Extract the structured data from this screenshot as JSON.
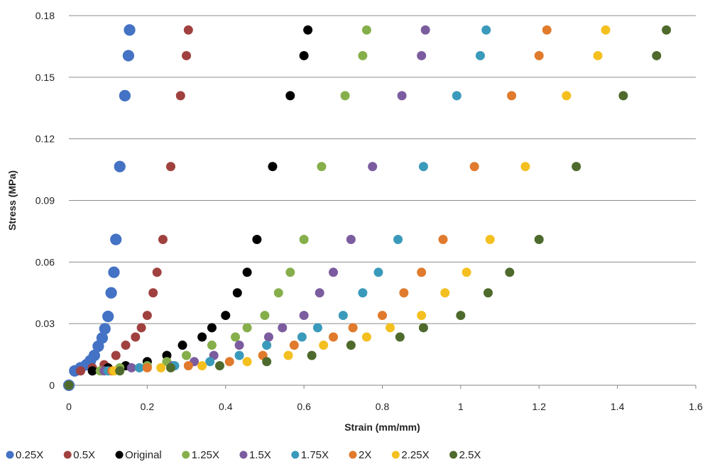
{
  "chart_data": {
    "type": "scatter",
    "xlabel": "Strain (mm/mm)",
    "ylabel": "Stress (MPa)",
    "xlim": [
      0,
      1.6
    ],
    "ylim": [
      0,
      0.18
    ],
    "x_ticks": [
      0,
      0.2,
      0.4,
      0.6,
      0.8,
      1,
      1.2,
      1.4,
      1.6
    ],
    "x_tick_labels": [
      "0",
      "0.2",
      "0.4",
      "0.6",
      "0.8",
      "1",
      "1.2",
      "1.4",
      "1.6"
    ],
    "y_ticks": [
      0,
      0.03,
      0.06,
      0.09,
      0.12,
      0.15,
      0.18
    ],
    "y_tick_labels": [
      "0",
      "0.03",
      "0.06",
      "0.09",
      "0.12",
      "0.15",
      "0.18"
    ],
    "grid": "horizontal",
    "legend_position": "bottom",
    "series": [
      {
        "name": "0.25X",
        "color": "#4472C4",
        "marker_scale": 1.25,
        "points": [
          [
            0,
            0
          ],
          [
            0.015,
            0.007
          ],
          [
            0.03,
            0.0085
          ],
          [
            0.045,
            0.01
          ],
          [
            0.055,
            0.012
          ],
          [
            0.065,
            0.0145
          ],
          [
            0.075,
            0.019
          ],
          [
            0.085,
            0.023
          ],
          [
            0.092,
            0.0275
          ],
          [
            0.1,
            0.0335
          ],
          [
            0.108,
            0.045
          ],
          [
            0.115,
            0.055
          ],
          [
            0.12,
            0.071
          ],
          [
            0.13,
            0.1065
          ],
          [
            0.143,
            0.141
          ],
          [
            0.152,
            0.1605
          ],
          [
            0.155,
            0.173
          ]
        ]
      },
      {
        "name": "0.5X",
        "color": "#A0413F",
        "points": [
          [
            0,
            0
          ],
          [
            0.03,
            0.007
          ],
          [
            0.06,
            0.0085
          ],
          [
            0.09,
            0.01
          ],
          [
            0.12,
            0.0145
          ],
          [
            0.145,
            0.0195
          ],
          [
            0.17,
            0.0235
          ],
          [
            0.185,
            0.028
          ],
          [
            0.2,
            0.034
          ],
          [
            0.215,
            0.045
          ],
          [
            0.225,
            0.055
          ],
          [
            0.24,
            0.071
          ],
          [
            0.26,
            0.1065
          ],
          [
            0.285,
            0.141
          ],
          [
            0.3,
            0.1605
          ],
          [
            0.305,
            0.173
          ]
        ]
      },
      {
        "name": "Original",
        "color": "#000000",
        "points": [
          [
            0,
            0
          ],
          [
            0.06,
            0.007
          ],
          [
            0.1,
            0.0085
          ],
          [
            0.145,
            0.0095
          ],
          [
            0.2,
            0.0115
          ],
          [
            0.25,
            0.0145
          ],
          [
            0.29,
            0.0195
          ],
          [
            0.34,
            0.0235
          ],
          [
            0.365,
            0.028
          ],
          [
            0.4,
            0.034
          ],
          [
            0.43,
            0.045
          ],
          [
            0.455,
            0.055
          ],
          [
            0.48,
            0.071
          ],
          [
            0.52,
            0.1065
          ],
          [
            0.565,
            0.141
          ],
          [
            0.6,
            0.1605
          ],
          [
            0.61,
            0.173
          ]
        ]
      },
      {
        "name": "1.25X",
        "color": "#86AF4B",
        "points": [
          [
            0,
            0
          ],
          [
            0.08,
            0.007
          ],
          [
            0.13,
            0.0085
          ],
          [
            0.2,
            0.0095
          ],
          [
            0.25,
            0.0115
          ],
          [
            0.3,
            0.0145
          ],
          [
            0.365,
            0.0195
          ],
          [
            0.425,
            0.0235
          ],
          [
            0.455,
            0.028
          ],
          [
            0.5,
            0.034
          ],
          [
            0.535,
            0.045
          ],
          [
            0.565,
            0.055
          ],
          [
            0.6,
            0.071
          ],
          [
            0.645,
            0.1065
          ],
          [
            0.705,
            0.141
          ],
          [
            0.75,
            0.1605
          ],
          [
            0.76,
            0.173
          ]
        ]
      },
      {
        "name": "1.5X",
        "color": "#7B5C9F",
        "points": [
          [
            0,
            0
          ],
          [
            0.09,
            0.007
          ],
          [
            0.16,
            0.0085
          ],
          [
            0.265,
            0.0095
          ],
          [
            0.32,
            0.0115
          ],
          [
            0.37,
            0.0145
          ],
          [
            0.435,
            0.0195
          ],
          [
            0.51,
            0.0235
          ],
          [
            0.545,
            0.028
          ],
          [
            0.6,
            0.034
          ],
          [
            0.64,
            0.045
          ],
          [
            0.675,
            0.055
          ],
          [
            0.72,
            0.071
          ],
          [
            0.775,
            0.1065
          ],
          [
            0.85,
            0.141
          ],
          [
            0.9,
            0.1605
          ],
          [
            0.91,
            0.173
          ]
        ]
      },
      {
        "name": "1.75X",
        "color": "#3A9ABB",
        "points": [
          [
            0,
            0
          ],
          [
            0.1,
            0.007
          ],
          [
            0.18,
            0.0085
          ],
          [
            0.27,
            0.0095
          ],
          [
            0.36,
            0.0115
          ],
          [
            0.435,
            0.0145
          ],
          [
            0.505,
            0.0195
          ],
          [
            0.595,
            0.0235
          ],
          [
            0.635,
            0.028
          ],
          [
            0.7,
            0.034
          ],
          [
            0.75,
            0.045
          ],
          [
            0.79,
            0.055
          ],
          [
            0.84,
            0.071
          ],
          [
            0.905,
            0.1065
          ],
          [
            0.99,
            0.141
          ],
          [
            1.05,
            0.1605
          ],
          [
            1.065,
            0.173
          ]
        ]
      },
      {
        "name": "2X",
        "color": "#E07A2C",
        "points": [
          [
            0,
            0
          ],
          [
            0.11,
            0.007
          ],
          [
            0.2,
            0.0085
          ],
          [
            0.305,
            0.0095
          ],
          [
            0.41,
            0.0115
          ],
          [
            0.495,
            0.0145
          ],
          [
            0.575,
            0.0195
          ],
          [
            0.675,
            0.0235
          ],
          [
            0.725,
            0.028
          ],
          [
            0.8,
            0.034
          ],
          [
            0.855,
            0.045
          ],
          [
            0.9,
            0.055
          ],
          [
            0.955,
            0.071
          ],
          [
            1.035,
            0.1065
          ],
          [
            1.13,
            0.141
          ],
          [
            1.2,
            0.1605
          ],
          [
            1.22,
            0.173
          ]
        ]
      },
      {
        "name": "2.25X",
        "color": "#F4C020",
        "points": [
          [
            0,
            0
          ],
          [
            0.115,
            0.007
          ],
          [
            0.235,
            0.0085
          ],
          [
            0.34,
            0.0095
          ],
          [
            0.455,
            0.0115
          ],
          [
            0.56,
            0.0145
          ],
          [
            0.65,
            0.0195
          ],
          [
            0.76,
            0.0235
          ],
          [
            0.82,
            0.028
          ],
          [
            0.9,
            0.034
          ],
          [
            0.96,
            0.045
          ],
          [
            1.015,
            0.055
          ],
          [
            1.075,
            0.071
          ],
          [
            1.165,
            0.1065
          ],
          [
            1.27,
            0.141
          ],
          [
            1.35,
            0.1605
          ],
          [
            1.37,
            0.173
          ]
        ]
      },
      {
        "name": "2.5X",
        "color": "#4E6A2C",
        "points": [
          [
            0,
            0
          ],
          [
            0.13,
            0.007
          ],
          [
            0.26,
            0.0085
          ],
          [
            0.385,
            0.0095
          ],
          [
            0.505,
            0.0115
          ],
          [
            0.62,
            0.0145
          ],
          [
            0.72,
            0.0195
          ],
          [
            0.845,
            0.0235
          ],
          [
            0.905,
            0.028
          ],
          [
            1,
            0.034
          ],
          [
            1.07,
            0.045
          ],
          [
            1.125,
            0.055
          ],
          [
            1.2,
            0.071
          ],
          [
            1.295,
            0.1065
          ],
          [
            1.415,
            0.141
          ],
          [
            1.5,
            0.1605
          ],
          [
            1.525,
            0.173
          ]
        ]
      }
    ]
  }
}
